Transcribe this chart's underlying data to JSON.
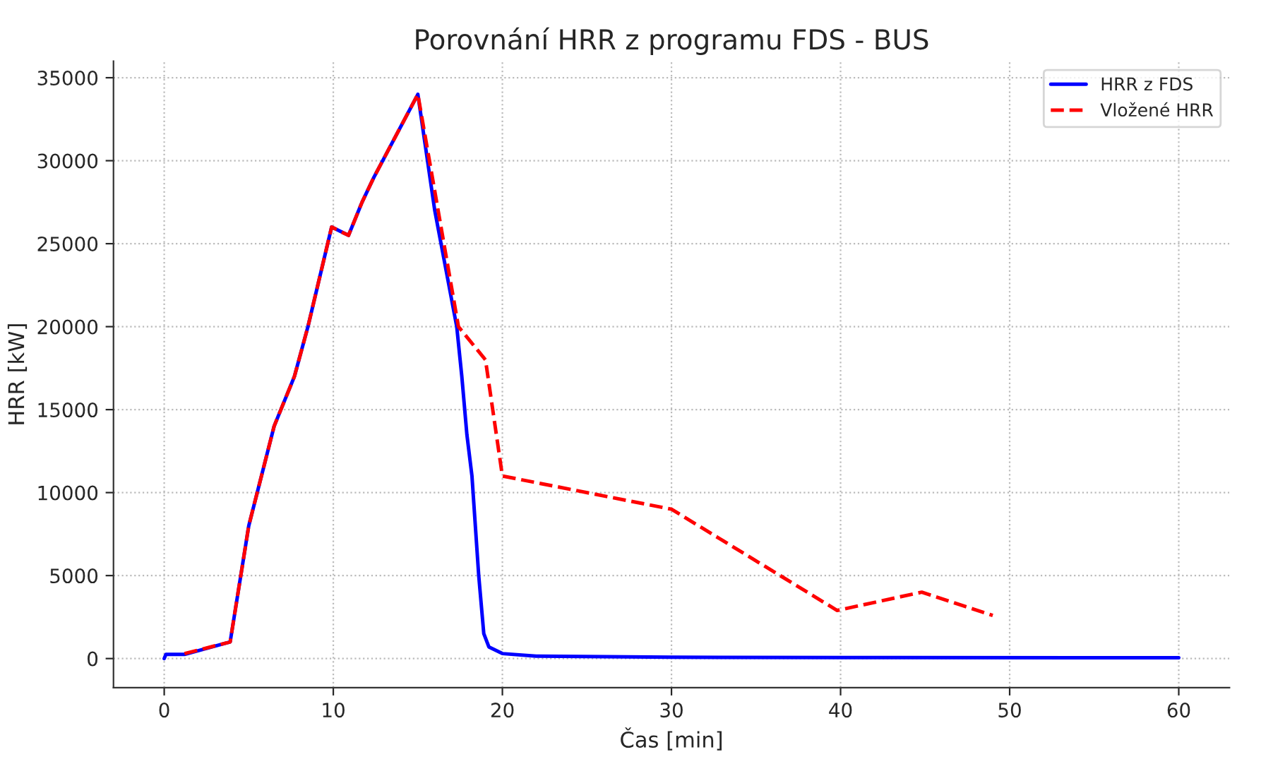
{
  "chart_data": {
    "type": "line",
    "title": "Porovnání HRR z programu FDS - BUS",
    "xlabel": "Čas [min]",
    "ylabel": "HRR [kW]",
    "xlim": [
      -3,
      63
    ],
    "xticks": [
      0,
      10,
      20,
      30,
      40,
      50,
      60
    ],
    "ylim": [
      -1750,
      36000
    ],
    "yticks": [
      0,
      5000,
      10000,
      15000,
      20000,
      25000,
      30000,
      35000
    ],
    "grid": true,
    "legend": "top right",
    "series": [
      {
        "name": "HRR z FDS",
        "color": "#0000ff",
        "line_style": "solid",
        "x": [
          0,
          0.1,
          1.2,
          3.9,
          5.0,
          6.5,
          7.7,
          8.5,
          9.9,
          10.9,
          11.7,
          12.4,
          15.0,
          16.0,
          17.3,
          17.6,
          17.9,
          18.2,
          18.6,
          18.9,
          19.2,
          20,
          22,
          30,
          40,
          60
        ],
        "values": [
          0,
          250,
          250,
          1000,
          8000,
          14000,
          17000,
          20000,
          26000,
          25500,
          27500,
          29000,
          34000,
          27000,
          20000,
          17000,
          13500,
          11000,
          5000,
          1500,
          700,
          300,
          150,
          80,
          60,
          50
        ]
      },
      {
        "name": "Vložené HRR",
        "color": "#ff0000",
        "line_style": "dashed",
        "x": [
          1.2,
          3.9,
          5.0,
          6.5,
          7.7,
          8.5,
          9.9,
          10.9,
          11.7,
          12.4,
          15.0,
          17.4,
          19.0,
          20.0,
          30.0,
          39.8,
          44.8,
          49.0
        ],
        "values": [
          300,
          1000,
          8000,
          14000,
          17000,
          20000,
          26000,
          25500,
          27500,
          29000,
          34000,
          20000,
          18000,
          11000,
          9000,
          2900,
          4000,
          2600
        ]
      }
    ]
  }
}
